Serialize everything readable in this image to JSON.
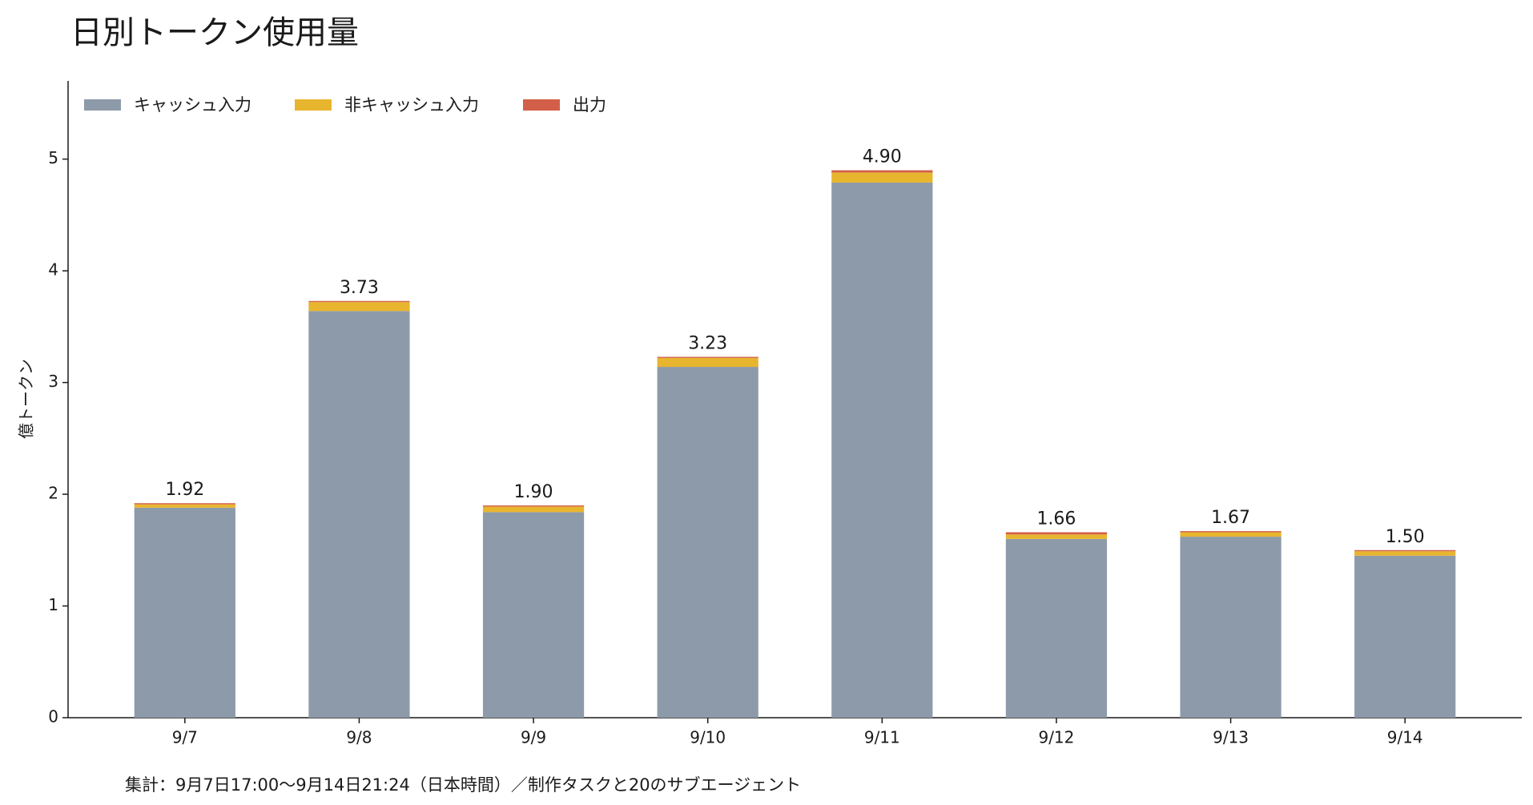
{
  "chart_data": {
    "type": "stacked_bar",
    "title": "日別トークン使用量",
    "y_label": "億トークン",
    "footnote": "集計：9月7日17:00〜9月14日21:24（日本時間）／制作タスクと20のサブエージェント",
    "categories": [
      "9/7",
      "9/8",
      "9/9",
      "9/10",
      "9/11",
      "9/12",
      "9/13",
      "9/14"
    ],
    "series": [
      {
        "name": "キャッシュ入力",
        "color": "#8d9aa9",
        "values": [
          1.88,
          3.64,
          1.84,
          3.14,
          4.79,
          1.6,
          1.62,
          1.45
        ]
      },
      {
        "name": "非キャッシュ入力",
        "color": "#e8b52e",
        "values": [
          0.03,
          0.08,
          0.05,
          0.08,
          0.09,
          0.04,
          0.04,
          0.04
        ]
      },
      {
        "name": "出力",
        "color": "#d35f48",
        "values": [
          0.01,
          0.01,
          0.01,
          0.01,
          0.02,
          0.02,
          0.01,
          0.01
        ]
      }
    ],
    "total_labels": [
      "1.92",
      "3.73",
      "1.90",
      "3.23",
      "4.90",
      "1.66",
      "1.67",
      "1.50"
    ],
    "ylim": [
      0,
      5.7
    ],
    "yticks": [
      0,
      1,
      2,
      3,
      4,
      5
    ],
    "legend": "upper left"
  }
}
